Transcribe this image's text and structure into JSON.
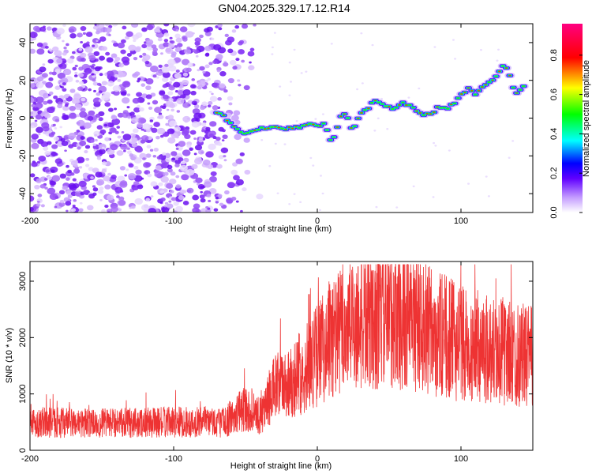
{
  "title": "GN04.2025.329.17.12.R14",
  "colorbar": {
    "label": "Normalized spectral amplitude",
    "ticks": [
      0.0,
      0.2,
      0.4,
      0.6,
      0.8
    ],
    "tick_labels": [
      "0.0",
      "0.2",
      "0.4",
      "0.6",
      "0.8"
    ],
    "range": [
      0,
      0.96
    ],
    "colormap": [
      "#ffffff",
      "#6000ff",
      "#0000ff",
      "#00ffff",
      "#00ff00",
      "#ffff00",
      "#ff0000",
      "#ff0080"
    ]
  },
  "chart_data": [
    {
      "type": "heatmap",
      "xlabel": "Height of straight line (km)",
      "ylabel": "Frequency (Hz)",
      "xlim": [
        -200,
        150
      ],
      "ylim": [
        -50,
        50
      ],
      "xticks": [
        -200,
        -100,
        0,
        100
      ],
      "xtick_labels": [
        "-200",
        "-100",
        "0",
        "100"
      ],
      "yticks": [
        -40,
        -20,
        0,
        20,
        40
      ],
      "ytick_labels": [
        "-40",
        "-20",
        "0",
        "20",
        "40"
      ],
      "noise_region_x": [
        -200,
        -45
      ],
      "ridge": {
        "x": [
          -70,
          -65,
          -60,
          -55,
          -50,
          -45,
          -40,
          -35,
          -30,
          -25,
          -20,
          -15,
          -10,
          -5,
          0,
          5,
          10,
          12,
          15,
          18,
          20,
          25,
          30,
          35,
          40,
          45,
          50,
          55,
          60,
          65,
          70,
          75,
          80,
          85,
          90,
          95,
          100,
          105,
          110,
          115,
          120,
          125,
          130,
          133,
          138,
          145
        ],
        "y": [
          3,
          1,
          -3,
          -7,
          -8,
          -7,
          -6,
          -5,
          -5,
          -6,
          -5,
          -5,
          -4,
          -3,
          -4,
          -3,
          -13,
          -10,
          -2,
          3,
          2,
          -7,
          3,
          5,
          9,
          7,
          6,
          5,
          8,
          6,
          3,
          2,
          3,
          6,
          5,
          8,
          12,
          16,
          13,
          17,
          20,
          22,
          28,
          25,
          12,
          18
        ]
      }
    },
    {
      "type": "line",
      "xlabel": "Height of straight line (km)",
      "ylabel": "SNR (10 * v/v)",
      "xlim": [
        -200,
        150
      ],
      "ylim": [
        0,
        3350
      ],
      "xticks": [
        -200,
        -100,
        0,
        100
      ],
      "xtick_labels": [
        "-200",
        "-100",
        "0",
        "100"
      ],
      "yticks": [
        0,
        1000,
        2000,
        3000
      ],
      "ytick_labels": [
        "0",
        "1000",
        "2000",
        "3000"
      ],
      "color": "#ee3333",
      "trend": {
        "x": [
          -200,
          -150,
          -100,
          -65,
          -50,
          -40,
          -30,
          -20,
          -10,
          0,
          10,
          25,
          40,
          50,
          65,
          80,
          100,
          120,
          150
        ],
        "y": [
          500,
          480,
          500,
          500,
          750,
          600,
          1100,
          1200,
          1400,
          1700,
          2000,
          2250,
          2300,
          2400,
          2300,
          2100,
          1900,
          1800,
          1650
        ]
      }
    }
  ]
}
